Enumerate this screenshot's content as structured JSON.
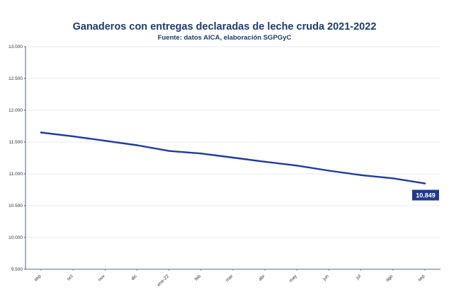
{
  "chart_data": {
    "type": "line",
    "title": "Ganaderos con entregas declaradas de leche cruda 2021-2022",
    "subtitle": "Fuente: datos AICA, elaboración SGPGyC",
    "xlabel": "",
    "ylabel": "",
    "categories": [
      "sep",
      "oct",
      "nov",
      "dic",
      "ene-22",
      "feb",
      "mar",
      "abr",
      "may",
      "jun",
      "jul",
      "ago",
      "sep"
    ],
    "series": [
      {
        "values": [
          11650,
          11590,
          11520,
          11450,
          11360,
          11320,
          11255,
          11190,
          11130,
          11050,
          10980,
          10930,
          10849
        ]
      }
    ],
    "y_ticks": [
      "9.500",
      "10.000",
      "10.500",
      "11.000",
      "11.500",
      "12.000",
      "12.500",
      "13.000"
    ],
    "ylim": [
      9500,
      13000
    ],
    "grid": true,
    "last_value_label": "10.849",
    "colors": {
      "line": "#1f3a9e",
      "label_bg": "#1f3a8a",
      "grid": "#dde4f0",
      "axis": "#1f3a6e",
      "title": "#1f3a6e"
    }
  }
}
